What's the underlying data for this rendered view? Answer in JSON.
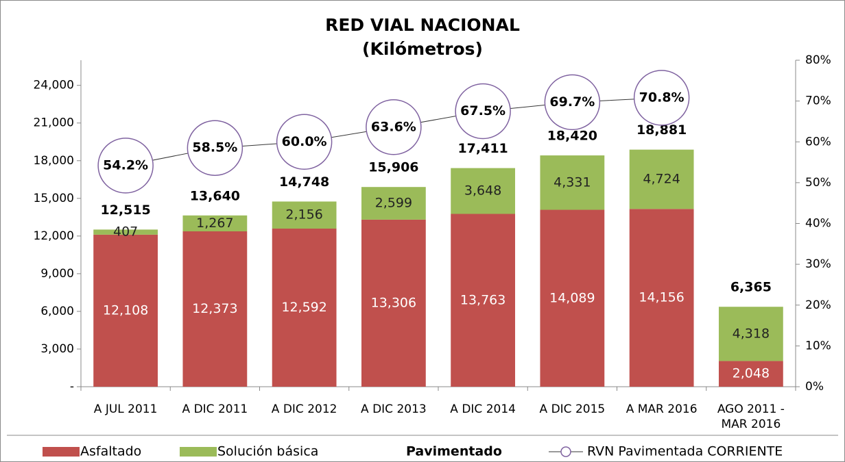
{
  "chart_data": {
    "type": "bar",
    "title": "RED VIAL NACIONAL",
    "subtitle": "(Kilómetros)",
    "categories": [
      "A JUL 2011",
      "A DIC 2011",
      "A DIC 2012",
      "A DIC 2013",
      "A DIC 2014",
      "A DIC 2015",
      "A MAR 2016",
      "AGO 2011 - MAR 2016"
    ],
    "series": [
      {
        "name": "Asfaltado",
        "type": "bar",
        "color": "#c0504d",
        "values": [
          12108,
          12373,
          12592,
          13306,
          13763,
          14089,
          14156,
          2048
        ],
        "value_labels": [
          "12,108",
          "12,373",
          "12,592",
          "13,306",
          "13,763",
          "14,089",
          "14,156",
          "2,048"
        ]
      },
      {
        "name": "Solución básica",
        "type": "bar",
        "color": "#9bbb59",
        "values": [
          407,
          1267,
          2156,
          2599,
          3648,
          4331,
          4724,
          4318
        ],
        "value_labels": [
          "407",
          "1,267",
          "2,156",
          "2,599",
          "3,648",
          "4,331",
          "4,724",
          "4,318"
        ]
      },
      {
        "name": "Pavimentado",
        "type": "total",
        "values": [
          12515,
          13640,
          14748,
          15906,
          17411,
          18420,
          18881,
          6365
        ],
        "value_labels": [
          "12,515",
          "13,640",
          "14,748",
          "15,906",
          "17,411",
          "18,420",
          "18,881",
          "6,365"
        ]
      },
      {
        "name": "RVN Pavimentada CORRIENTE",
        "type": "line",
        "axis": "y2",
        "color": "#7f62a0",
        "values": [
          54.2,
          58.5,
          60.0,
          63.6,
          67.5,
          69.7,
          70.8,
          null
        ],
        "value_labels": [
          "54.2%",
          "58.5%",
          "60.0%",
          "63.6%",
          "67.5%",
          "69.7%",
          "70.8%",
          null
        ]
      }
    ],
    "ylim": [
      0,
      26000
    ],
    "yticks": [
      {
        "value": 0,
        "label": "-"
      },
      {
        "value": 3000,
        "label": "3,000"
      },
      {
        "value": 6000,
        "label": "6,000"
      },
      {
        "value": 9000,
        "label": "9,000"
      },
      {
        "value": 12000,
        "label": "12,000"
      },
      {
        "value": 15000,
        "label": "15,000"
      },
      {
        "value": 18000,
        "label": "18,000"
      },
      {
        "value": 21000,
        "label": "21,000"
      },
      {
        "value": 24000,
        "label": "24,000"
      }
    ],
    "y2lim": [
      0,
      80
    ],
    "y2ticks": [
      {
        "value": 0,
        "label": "0%"
      },
      {
        "value": 10,
        "label": "10%"
      },
      {
        "value": 20,
        "label": "20%"
      },
      {
        "value": 30,
        "label": "30%"
      },
      {
        "value": 40,
        "label": "40%"
      },
      {
        "value": 50,
        "label": "50%"
      },
      {
        "value": 60,
        "label": "60%"
      },
      {
        "value": 70,
        "label": "70%"
      },
      {
        "value": 80,
        "label": "80%"
      }
    ],
    "legend": "bottom"
  }
}
